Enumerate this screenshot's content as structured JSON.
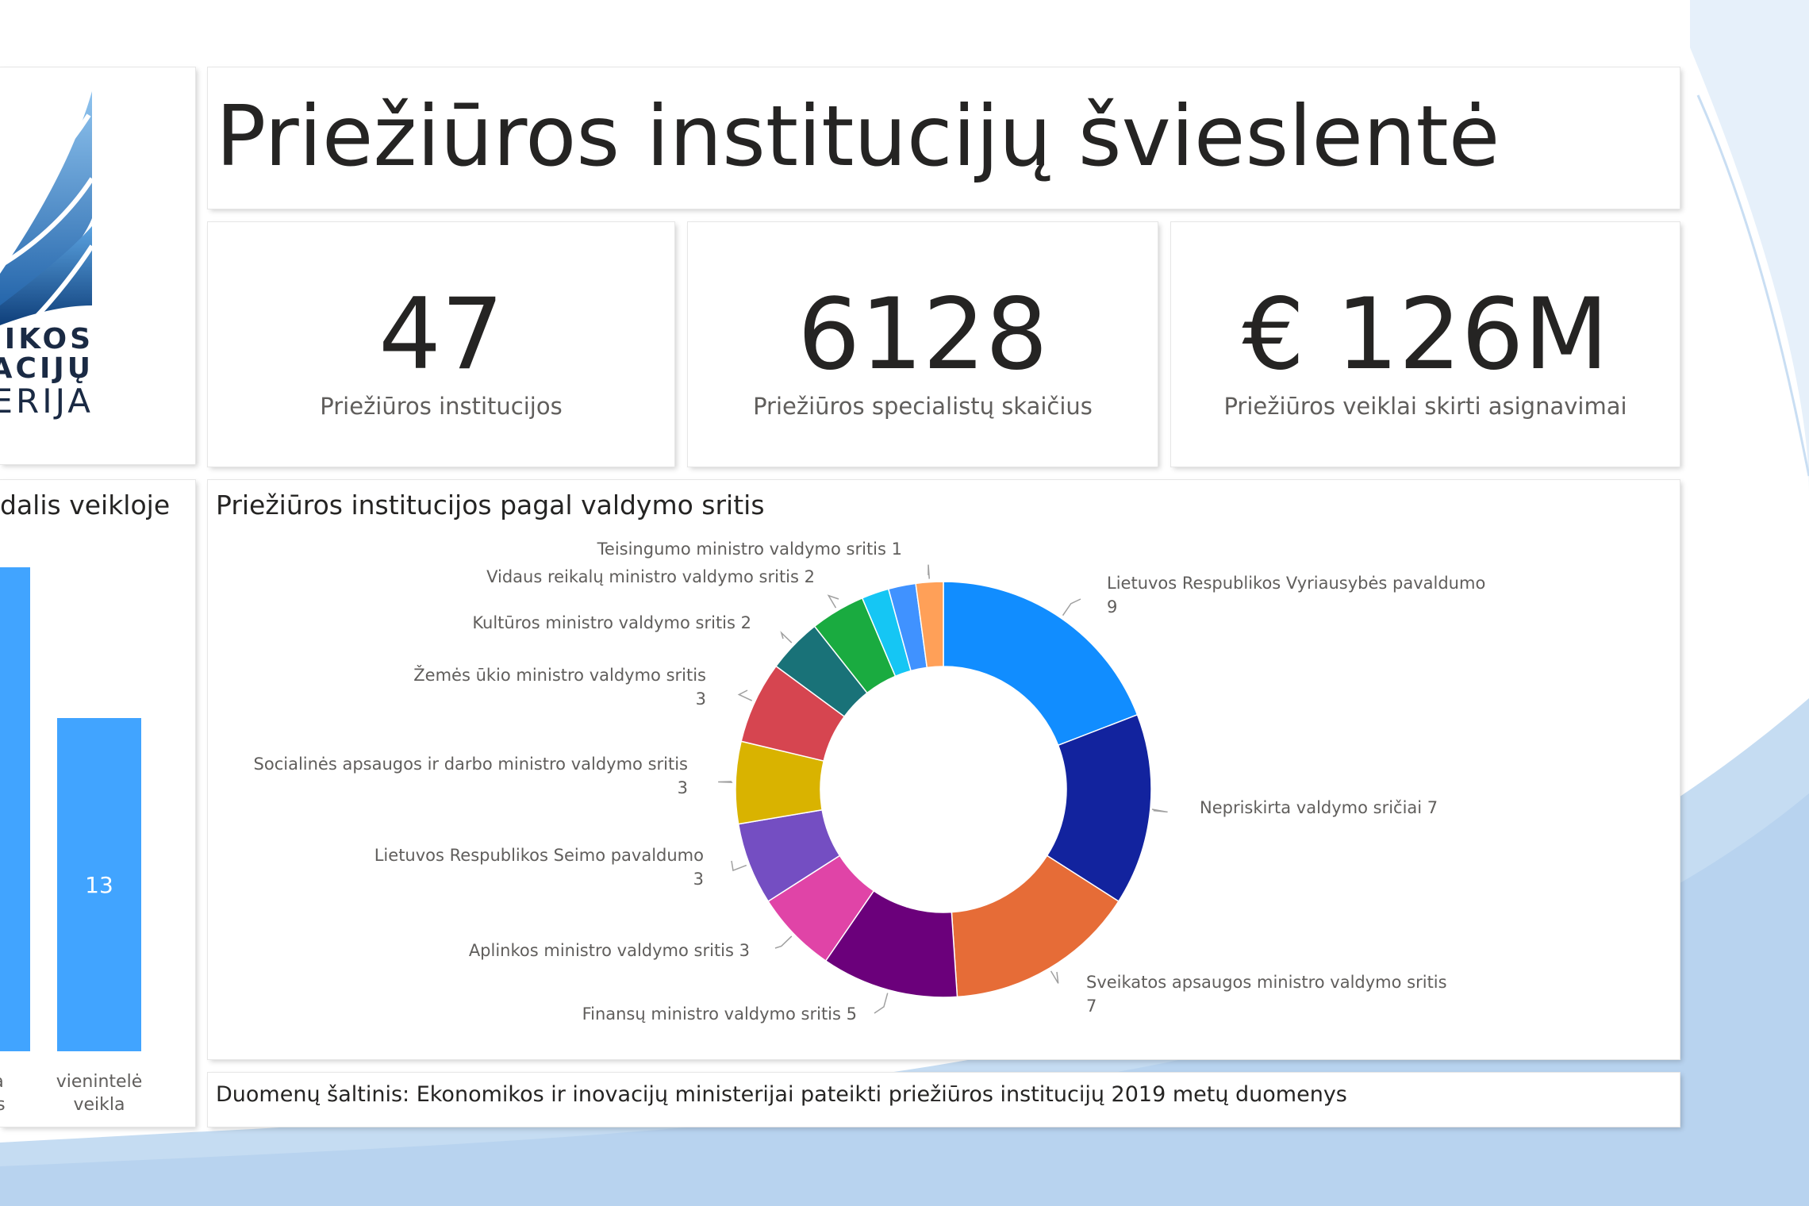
{
  "title": "Priežiūros institucijų švieslentė",
  "logo": {
    "lines": [
      "MIKOS",
      "VACIJŲ",
      "ERIJA"
    ]
  },
  "kpis": [
    {
      "value": "47",
      "label": "Priežiūros institucijos"
    },
    {
      "value": "6128",
      "label": "Priežiūros specialistų skaičius"
    },
    {
      "value": "€ 126M",
      "label": "Priežiūros veiklai skirti asignavimai"
    }
  ],
  "left_panel": {
    "title": "dalis veikloje"
  },
  "colors": {
    "accent": "#118dff",
    "background_wave": "#c5dcf2"
  },
  "chart_data": [
    {
      "type": "bar",
      "title": "dalis veikloje",
      "categories": [
        "inga\ndalis",
        "vienintelė\nveikla"
      ],
      "category_labels": [
        [
          "inga",
          "dalis"
        ],
        [
          "vienintelė",
          "veikla"
        ]
      ],
      "values": [
        null,
        13
      ],
      "value_labels": [
        "",
        "13"
      ],
      "color": "#41a4ff",
      "note": "first bar partially cropped; height ~1.43x second bar"
    },
    {
      "type": "pie",
      "donut": true,
      "title": "Priežiūros institucijos pagal valdymo sritis",
      "slices": [
        {
          "name": "Lietuvos Respublikos Vyriausybės pavaldumo",
          "value": 9,
          "color": "#118dff",
          "label_lines": [
            "Lietuvos Respublikos Vyriausybės pavaldumo",
            "9"
          ]
        },
        {
          "name": "Nepriskirta valdymo sričiai",
          "value": 7,
          "color": "#12239e",
          "label_lines": [
            "Nepriskirta valdymo sričiai 7"
          ]
        },
        {
          "name": "Sveikatos apsaugos ministro valdymo sritis",
          "value": 7,
          "color": "#e66c37",
          "label_lines": [
            "Sveikatos apsaugos ministro valdymo sritis",
            "7"
          ]
        },
        {
          "name": "Finansų ministro valdymo sritis",
          "value": 5,
          "color": "#6b007b",
          "label_lines": [
            "Finansų ministro valdymo sritis 5"
          ]
        },
        {
          "name": "Aplinkos ministro valdymo sritis",
          "value": 3,
          "color": "#e044a7",
          "label_lines": [
            "Aplinkos ministro valdymo sritis 3"
          ]
        },
        {
          "name": "Lietuvos Respublikos Seimo pavaldumo",
          "value": 3,
          "color": "#744ec2",
          "label_lines": [
            "Lietuvos Respublikos Seimo pavaldumo",
            "3"
          ]
        },
        {
          "name": "Socialinės apsaugos ir darbo ministro valdymo sritis",
          "value": 3,
          "color": "#d9b300",
          "label_lines": [
            "Socialinės apsaugos ir darbo ministro valdymo sritis",
            "3"
          ]
        },
        {
          "name": "Žemės ūkio ministro valdymo sritis",
          "value": 3,
          "color": "#d64550",
          "label_lines": [
            "Žemės ūkio ministro valdymo sritis",
            "3"
          ]
        },
        {
          "name": "Kultūros ministro valdymo sritis",
          "value": 2,
          "color": "#197278",
          "label_lines": [
            "Kultūros ministro valdymo sritis 2"
          ]
        },
        {
          "name": "Vidaus reikalų ministro valdymo sritis",
          "value": 2,
          "color": "#1aab40",
          "label_lines": [
            "Vidaus reikalų ministro valdymo sritis 2"
          ]
        },
        {
          "name": "",
          "value": 1,
          "color": "#15c6f4",
          "label_lines": []
        },
        {
          "name": "",
          "value": 1,
          "color": "#4092ff",
          "label_lines": []
        },
        {
          "name": "Teisingumo ministro valdymo sritis",
          "value": 1,
          "color": "#ffa058",
          "label_lines": [
            "Teisingumo ministro valdymo sritis 1"
          ]
        }
      ]
    }
  ],
  "source": "Duomenų šaltinis: Ekonomikos ir inovacijų ministerijai pateikti priežiūros institucijų 2019 metų duomenys"
}
